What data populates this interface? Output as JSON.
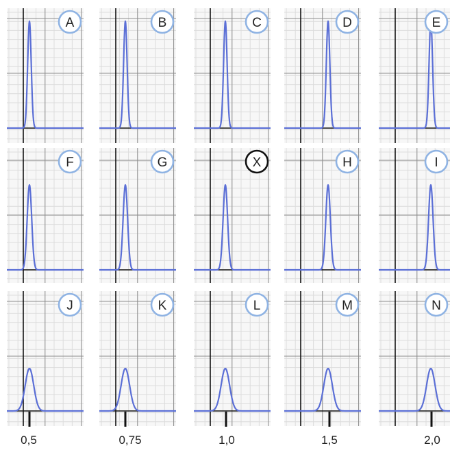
{
  "chart_data": {
    "type": "line",
    "panels": [
      {
        "label": "A",
        "peak_x": 0.5,
        "height": 1.0,
        "width": 1.0,
        "highlight": false
      },
      {
        "label": "B",
        "peak_x": 0.75,
        "height": 1.0,
        "width": 1.0,
        "highlight": false
      },
      {
        "label": "C",
        "peak_x": 1.0,
        "height": 1.0,
        "width": 1.0,
        "highlight": false
      },
      {
        "label": "D",
        "peak_x": 1.5,
        "height": 1.0,
        "width": 1.0,
        "highlight": false
      },
      {
        "label": "E",
        "peak_x": 2.0,
        "height": 1.0,
        "width": 1.0,
        "highlight": false
      },
      {
        "label": "F",
        "peak_x": 0.5,
        "height": 0.8,
        "width": 1.4,
        "highlight": false
      },
      {
        "label": "G",
        "peak_x": 0.75,
        "height": 0.8,
        "width": 1.4,
        "highlight": false
      },
      {
        "label": "X",
        "peak_x": 1.0,
        "height": 0.8,
        "width": 1.4,
        "highlight": true
      },
      {
        "label": "H",
        "peak_x": 1.5,
        "height": 0.8,
        "width": 1.4,
        "highlight": false
      },
      {
        "label": "I",
        "peak_x": 2.0,
        "height": 0.8,
        "width": 1.4,
        "highlight": false
      },
      {
        "label": "J",
        "peak_x": 0.5,
        "height": 0.4,
        "width": 3.0,
        "highlight": false
      },
      {
        "label": "K",
        "peak_x": 0.75,
        "height": 0.4,
        "width": 3.0,
        "highlight": false
      },
      {
        "label": "L",
        "peak_x": 1.0,
        "height": 0.4,
        "width": 3.0,
        "highlight": false
      },
      {
        "label": "M",
        "peak_x": 1.5,
        "height": 0.4,
        "width": 3.0,
        "highlight": false
      },
      {
        "label": "N",
        "peak_x": 2.0,
        "height": 0.4,
        "width": 3.0,
        "highlight": false
      }
    ],
    "x_tick_labels": [
      "0,5",
      "0,75",
      "1,0",
      "1,5",
      "2,0"
    ],
    "grid": true,
    "colors": {
      "curve": "#5b6fd6",
      "baseline": "#5b6fd6",
      "badge_border": "#8fb3e3",
      "badge_highlight_border": "#111111",
      "grid_minor": "#dcdcdc",
      "grid_major": "#8c8c8c",
      "axis": "#111111"
    }
  }
}
